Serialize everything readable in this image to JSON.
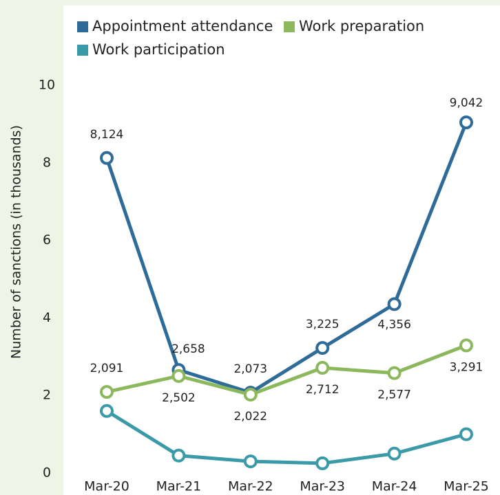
{
  "chart_data": {
    "type": "line",
    "y_label": "Number of sanctions (in thousands)",
    "categories": [
      "Mar-20",
      "Mar-21",
      "Mar-22",
      "Mar-23",
      "Mar-24",
      "Mar-25"
    ],
    "series": [
      {
        "name": "Appointment attendance",
        "color": "#2f6b98",
        "values": [
          8.124,
          2.658,
          2.073,
          3.225,
          4.356,
          9.042
        ],
        "value_labels": [
          "8,124",
          "2,658",
          "2,073",
          "3,225",
          "4,356",
          "9,042"
        ]
      },
      {
        "name": "Work preparation",
        "color": "#8bb85c",
        "values": [
          2.091,
          2.502,
          2.022,
          2.712,
          2.577,
          3.291
        ],
        "value_labels": [
          "2,091",
          "2,502",
          "2,022",
          "2,712",
          "2,577",
          "3,291"
        ]
      },
      {
        "name": "Work participation",
        "color": "#3a9aa8",
        "values": [
          1.6,
          0.45,
          0.3,
          0.25,
          0.5,
          1.0
        ]
      }
    ],
    "ylim": [
      0,
      10
    ],
    "yticks": [
      0,
      2,
      4,
      6,
      8,
      10
    ],
    "grid": false
  }
}
